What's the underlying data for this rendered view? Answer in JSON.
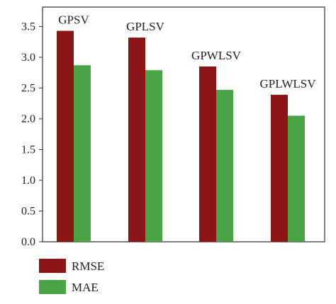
{
  "chart_data": {
    "type": "bar",
    "categories": [
      "GPSV",
      "GPLSV",
      "GPWLSV",
      "GPLWLSV"
    ],
    "series": [
      {
        "name": "RMSE",
        "values": [
          3.43,
          3.32,
          2.85,
          2.39
        ],
        "color": "#8b1414"
      },
      {
        "name": "MAE",
        "values": [
          2.87,
          2.79,
          2.47,
          2.05
        ],
        "color": "#4aa345"
      }
    ],
    "ylim": [
      0,
      3.6
    ],
    "yticks": [
      "0.0",
      "0.5",
      "1.0",
      "1.5",
      "2.0",
      "2.5",
      "3.0",
      "3.5"
    ],
    "xlabel": "",
    "ylabel": "",
    "title": "",
    "grid": false,
    "legend_position": "bottom-left"
  }
}
